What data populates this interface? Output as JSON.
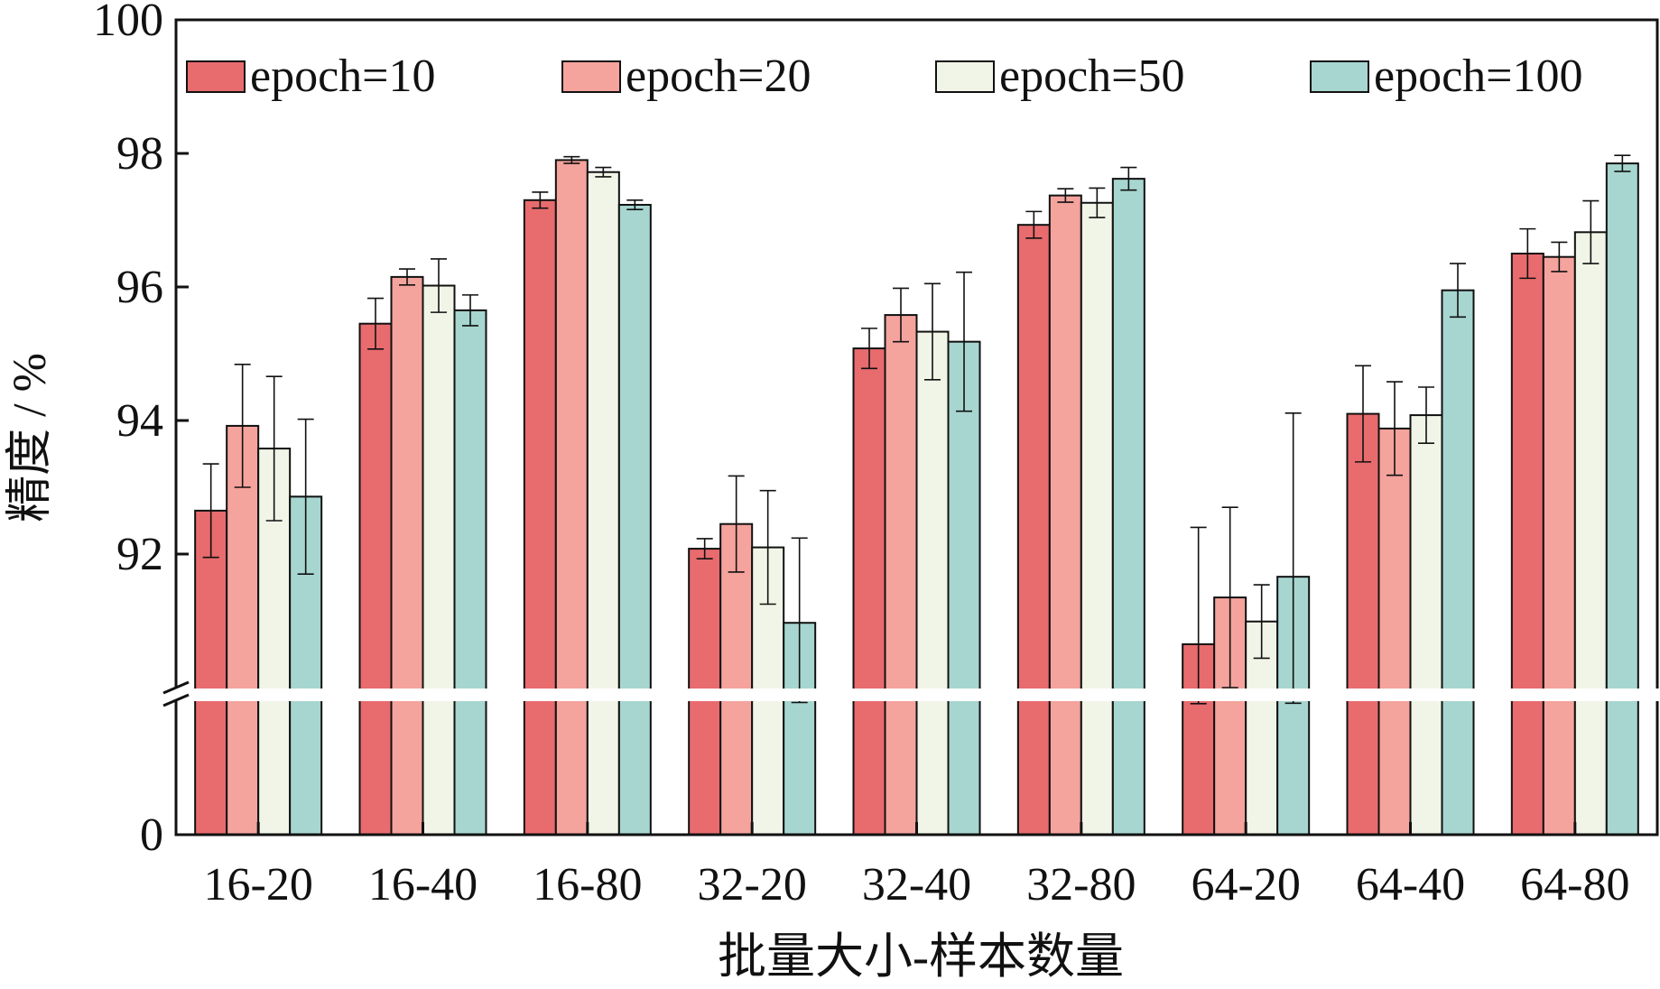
{
  "chart_data": {
    "type": "bar",
    "xlabel": "批量大小-样本数量",
    "ylabel": "精度 / %",
    "categories": [
      "16-20",
      "16-40",
      "16-80",
      "32-20",
      "32-40",
      "32-80",
      "64-20",
      "64-40",
      "64-80"
    ],
    "y_ticks_upper": [
      92,
      94,
      96,
      98,
      100
    ],
    "y_tick_labels_upper": [
      "92",
      "94",
      "96",
      "98",
      "100"
    ],
    "y_tick_lower_label": "0",
    "ylim_upper": [
      90,
      100
    ],
    "ylim_lower": [
      0,
      90
    ],
    "axis_break": true,
    "legend_position": "top",
    "error_bars": true,
    "series": [
      {
        "name": "epoch=10",
        "color": "#e86b6e",
        "values": [
          92.65,
          95.45,
          97.3,
          92.08,
          95.08,
          96.93,
          90.65,
          94.1,
          96.5
        ],
        "errors": [
          0.7,
          0.38,
          0.12,
          0.15,
          0.3,
          0.2,
          1.75,
          0.72,
          0.37
        ]
      },
      {
        "name": "epoch=20",
        "color": "#f5a39d",
        "values": [
          93.92,
          96.15,
          97.9,
          92.45,
          95.58,
          97.37,
          91.35,
          93.88,
          96.45
        ],
        "errors": [
          0.92,
          0.12,
          0.05,
          0.72,
          0.4,
          0.1,
          1.35,
          0.7,
          0.22
        ]
      },
      {
        "name": "epoch=50",
        "color": "#f1f5e7",
        "values": [
          93.58,
          96.02,
          97.72,
          92.1,
          95.33,
          97.26,
          90.99,
          94.08,
          96.82
        ],
        "errors": [
          1.08,
          0.4,
          0.07,
          0.85,
          0.72,
          0.22,
          0.55,
          0.42,
          0.47
        ]
      },
      {
        "name": "epoch=100",
        "color": "#a6d6cf",
        "values": [
          92.86,
          95.65,
          97.23,
          90.97,
          95.18,
          97.62,
          91.66,
          95.95,
          97.85
        ],
        "errors": [
          1.16,
          0.23,
          0.07,
          1.27,
          1.04,
          0.17,
          2.45,
          0.4,
          0.12
        ]
      }
    ]
  }
}
